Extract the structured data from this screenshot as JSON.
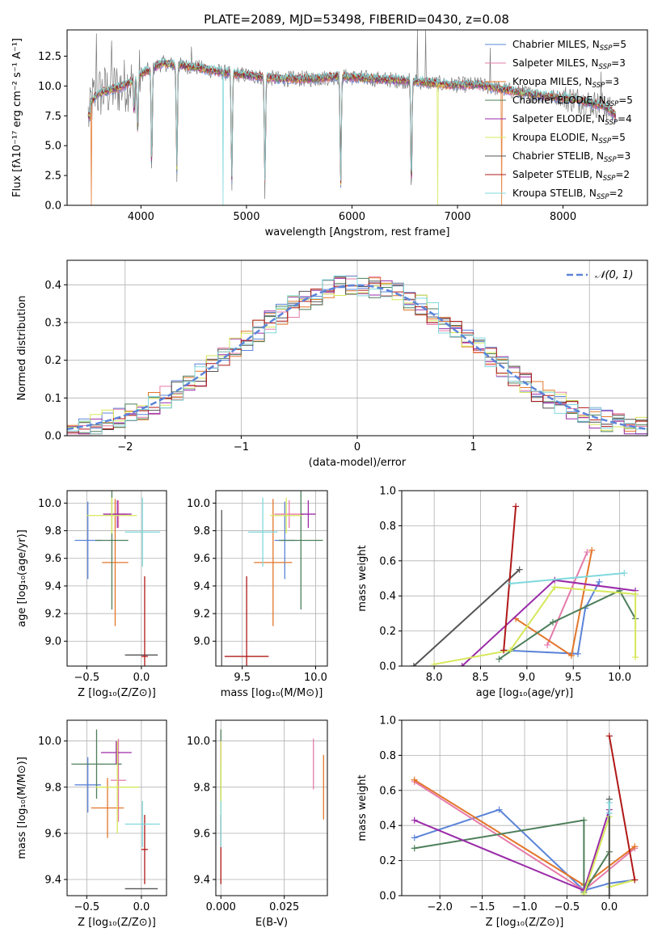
{
  "figure": {
    "title": "PLATE=2089, MJD=53498, FIBERID=0430, z=0.08"
  },
  "colors": {
    "Chabrier MILES": "#5b84d8",
    "Salpeter MILES": "#e57ba9",
    "Kroupa MILES": "#e3762a",
    "Chabrier ELODIE": "#4e7f5b",
    "Salpeter ELODIE": "#9a2ba8",
    "Kroupa ELODIE": "#d6e85a",
    "Chabrier STELIB": "#555555",
    "Salpeter STELIB": "#b01818",
    "Kroupa STELIB": "#80d8dc",
    "gaussian": "#5b84d8",
    "data": "#7a7a7a"
  },
  "chart_data": [
    {
      "id": "spectrum",
      "type": "line",
      "title": "PLATE=2089, MJD=53498, FIBERID=0430, z=0.08",
      "xlabel": "wavelength [Angstrom, rest frame]",
      "ylabel": "Flux [fλ10⁻¹⁷ erg cm⁻² s⁻¹ A⁻¹]",
      "xlim": [
        3300,
        8800
      ],
      "ylim": [
        0,
        14.7
      ],
      "xticks": [
        4000,
        5000,
        6000,
        7000,
        8000
      ],
      "yticks": [
        0.0,
        2.5,
        5.0,
        7.5,
        10.0,
        12.5
      ],
      "grid": false,
      "legend_position": "upper right",
      "legend": [
        {
          "label": "Chabrier MILES, N",
          "sub": "SSP",
          "value": "=5",
          "color": "#5b84d8"
        },
        {
          "label": "Salpeter MILES, N",
          "sub": "SSP",
          "value": "=3",
          "color": "#e57ba9"
        },
        {
          "label": "Kroupa MILES, N",
          "sub": "SSP",
          "value": "=3",
          "color": "#e3762a"
        },
        {
          "label": "Chabrier ELODIE, N",
          "sub": "SSP",
          "value": "=5",
          "color": "#4e7f5b"
        },
        {
          "label": "Salpeter ELODIE, N",
          "sub": "SSP",
          "value": "=4",
          "color": "#9a2ba8"
        },
        {
          "label": "Kroupa ELODIE, N",
          "sub": "SSP",
          "value": "=5",
          "color": "#d6e85a"
        },
        {
          "label": "Chabrier STELIB, N",
          "sub": "SSP",
          "value": "=3",
          "color": "#555555"
        },
        {
          "label": "Salpeter STELIB, N",
          "sub": "SSP",
          "value": "=2",
          "color": "#b01818"
        },
        {
          "label": "Kroupa STELIB, N",
          "sub": "SSP",
          "value": "=2",
          "color": "#80d8dc"
        }
      ],
      "continuum": [
        [
          3520,
          8.6
        ],
        [
          3600,
          9.4
        ],
        [
          3800,
          9.9
        ],
        [
          3900,
          10.3
        ],
        [
          4000,
          11.0
        ],
        [
          4200,
          11.9
        ],
        [
          4500,
          11.6
        ],
        [
          4800,
          11.1
        ],
        [
          5000,
          10.9
        ],
        [
          5300,
          10.6
        ],
        [
          5600,
          10.6
        ],
        [
          5900,
          10.8
        ],
        [
          6200,
          10.6
        ],
        [
          6600,
          10.4
        ],
        [
          6900,
          10.1
        ],
        [
          7200,
          10.1
        ],
        [
          7500,
          9.6
        ],
        [
          7800,
          9.2
        ],
        [
          8100,
          8.9
        ],
        [
          8400,
          8.3
        ],
        [
          8500,
          7.5
        ]
      ],
      "data_range": [
        3500,
        8500
      ],
      "absorption": [
        [
          3934,
          3.0
        ],
        [
          3969,
          4.8
        ],
        [
          4102,
          9.0
        ],
        [
          4340,
          9.6
        ],
        [
          4861,
          9.9
        ],
        [
          5175,
          9.8
        ],
        [
          5893,
          10.1
        ],
        [
          6563,
          9.9
        ]
      ],
      "dropouts": [
        {
          "x": 3530,
          "series": "Kroupa MILES"
        },
        {
          "x": 3905,
          "series": "Kroupa ELODIE"
        },
        {
          "x": 4780,
          "series": "Kroupa STELIB"
        },
        {
          "x": 6810,
          "series": "Kroupa ELODIE"
        },
        {
          "x": 7420,
          "series": "Kroupa MILES"
        }
      ],
      "data_spikes": [
        {
          "x": 3580,
          "value": 14.4
        },
        {
          "x": 3720,
          "value": 13.8
        },
        {
          "x": 4480,
          "value": 13.3
        },
        {
          "x": 6620,
          "value": 14.7
        },
        {
          "x": 6700,
          "value": 14.7
        },
        {
          "x": 7310,
          "value": 13.2
        },
        {
          "x": 8360,
          "value": 11.2
        }
      ]
    },
    {
      "id": "residuals",
      "type": "histogram",
      "xlabel": "(data-model)/error",
      "ylabel": "Normed distribution",
      "xlim": [
        -2.5,
        2.5
      ],
      "ylim": [
        0,
        0.465
      ],
      "xticks": [
        -2,
        -1,
        0,
        1,
        2
      ],
      "yticks": [
        0.0,
        0.1,
        0.2,
        0.3,
        0.4
      ],
      "grid": true,
      "legend_position": "upper right",
      "legend": [
        {
          "label": "𝒩(0, 1)",
          "color": "#5b84d8"
        }
      ],
      "bin_width": 0.1,
      "gaussian": {
        "mean": 0,
        "sigma": 1
      }
    },
    {
      "id": "age-vs-Z",
      "type": "errorbar",
      "xlabel": "Z [log₁₀(Z/Z⊙)]",
      "ylabel": "age  [log₁₀(age/yr)]",
      "xlim": [
        -0.68,
        0.23
      ],
      "ylim": [
        8.82,
        10.09
      ],
      "xticks": [
        -0.5,
        0.0
      ],
      "yticks": [
        9.0,
        9.2,
        9.4,
        9.6,
        9.8,
        10.0
      ],
      "grid": true,
      "points": [
        {
          "series": "Chabrier MILES",
          "x": -0.49,
          "xerr": 0.12,
          "y": 9.73,
          "yerr": 0.28
        },
        {
          "series": "Salpeter MILES",
          "x": -0.21,
          "xerr": 0.08,
          "y": 9.92,
          "yerr": 0.1
        },
        {
          "series": "Kroupa MILES",
          "x": -0.24,
          "xerr": 0.12,
          "y": 9.57,
          "yerr": 0.46
        },
        {
          "series": "Chabrier ELODIE",
          "x": -0.27,
          "xerr": 0.15,
          "y": 9.73,
          "yerr": 0.5
        },
        {
          "series": "Salpeter ELODIE",
          "x": -0.22,
          "xerr": 0.13,
          "y": 9.92,
          "yerr": 0.1
        },
        {
          "series": "Kroupa ELODIE",
          "x": -0.27,
          "xerr": 0.23,
          "y": 9.91,
          "yerr": 0.13
        },
        {
          "series": "Chabrier STELIB",
          "x": 0.0,
          "xerr": 0.15,
          "y": 8.9,
          "yerr": 0.0
        },
        {
          "series": "Salpeter STELIB",
          "x": 0.03,
          "xerr": 0.03,
          "y": 8.89,
          "yerr": 0.58
        },
        {
          "series": "Kroupa STELIB",
          "x": 0.01,
          "xerr": 0.16,
          "y": 9.79,
          "yerr": 0.25
        }
      ]
    },
    {
      "id": "age-vs-mass",
      "type": "errorbar",
      "xlabel": "mass [log₁₀(M/M⊙)]",
      "ylabel": "",
      "xlim": [
        9.32,
        10.08
      ],
      "ylim": [
        8.82,
        10.09
      ],
      "xticks": [
        9.5,
        10.0
      ],
      "yticks": [
        9.0,
        9.2,
        9.4,
        9.6,
        9.8,
        10.0
      ],
      "grid": true,
      "points": [
        {
          "series": "Chabrier MILES",
          "x": 9.79,
          "xerr": 0.07,
          "y": 9.73,
          "yerr": 0.28
        },
        {
          "series": "Salpeter MILES",
          "x": 9.82,
          "xerr": 0.1,
          "y": 9.92,
          "yerr": 0.1
        },
        {
          "series": "Kroupa MILES",
          "x": 9.71,
          "xerr": 0.13,
          "y": 9.57,
          "yerr": 0.46
        },
        {
          "series": "Chabrier ELODIE",
          "x": 9.9,
          "xerr": 0.15,
          "y": 9.73,
          "yerr": 0.5
        },
        {
          "series": "Salpeter ELODIE",
          "x": 9.95,
          "xerr": 0.05,
          "y": 9.92,
          "yerr": 0.1
        },
        {
          "series": "Kroupa ELODIE",
          "x": 9.8,
          "xerr": 0.11,
          "y": 9.91,
          "yerr": 0.13
        },
        {
          "series": "Chabrier STELIB",
          "x": 9.36,
          "xerr": 0.0,
          "y": 8.9,
          "yerr": 1.05
        },
        {
          "series": "Salpeter STELIB",
          "x": 9.53,
          "xerr": 0.15,
          "y": 8.89,
          "yerr": 0.58
        },
        {
          "series": "Kroupa STELIB",
          "x": 9.64,
          "xerr": 0.1,
          "y": 9.79,
          "yerr": 0.25
        }
      ]
    },
    {
      "id": "weight-vs-age",
      "type": "line",
      "xlabel": "age  [log₁₀(age/yr)]",
      "ylabel": "mass weight",
      "xlim": [
        7.65,
        10.3
      ],
      "ylim": [
        0,
        1
      ],
      "xticks": [
        8.0,
        8.5,
        9.0,
        9.5,
        10.0
      ],
      "yticks": [
        0.0,
        0.2,
        0.4,
        0.6,
        0.8,
        1.0
      ],
      "grid": true,
      "series": [
        {
          "name": "Chabrier MILES",
          "points": [
            [
              8.75,
              0.09
            ],
            [
              9.55,
              0.07
            ],
            [
              9.63,
              0.33
            ],
            [
              9.78,
              0.48
            ]
          ]
        },
        {
          "name": "Salpeter MILES",
          "points": [
            [
              9.22,
              0.12
            ],
            [
              9.65,
              0.65
            ]
          ]
        },
        {
          "name": "Kroupa MILES",
          "points": [
            [
              8.88,
              0.27
            ],
            [
              9.48,
              0.06
            ],
            [
              9.7,
              0.66
            ]
          ]
        },
        {
          "name": "Chabrier ELODIE",
          "points": [
            [
              8.7,
              0.04
            ],
            [
              9.28,
              0.25
            ],
            [
              10.0,
              0.43
            ],
            [
              10.17,
              0.27
            ]
          ]
        },
        {
          "name": "Salpeter ELODIE",
          "points": [
            [
              8.3,
              0.0
            ],
            [
              9.3,
              0.49
            ],
            [
              10.17,
              0.43
            ]
          ]
        },
        {
          "name": "Kroupa ELODIE",
          "points": [
            [
              8.0,
              0.01
            ],
            [
              8.82,
              0.09
            ],
            [
              9.3,
              0.45
            ],
            [
              10.17,
              0.41
            ],
            [
              10.17,
              0.05
            ]
          ]
        },
        {
          "name": "Chabrier STELIB",
          "points": [
            [
              7.78,
              0.0
            ],
            [
              8.92,
              0.55
            ]
          ]
        },
        {
          "name": "Salpeter STELIB",
          "points": [
            [
              8.75,
              0.09
            ],
            [
              8.88,
              0.91
            ]
          ]
        },
        {
          "name": "Kroupa STELIB",
          "points": [
            [
              8.82,
              0.47
            ],
            [
              10.05,
              0.53
            ]
          ]
        }
      ]
    },
    {
      "id": "mass-vs-Z",
      "type": "errorbar",
      "xlabel": "Z [log₁₀(Z/Z⊙)]",
      "ylabel": "mass [log₁₀(M/M⊙)]",
      "xlim": [
        -0.68,
        0.23
      ],
      "ylim": [
        9.33,
        10.09
      ],
      "xticks": [
        -0.5,
        0.0
      ],
      "yticks": [
        9.4,
        9.6,
        9.8,
        10.0
      ],
      "grid": true,
      "points": [
        {
          "series": "Chabrier MILES",
          "x": -0.49,
          "xerr": 0.12,
          "y": 9.81,
          "yerr": 0.12
        },
        {
          "series": "Salpeter MILES",
          "x": -0.21,
          "xerr": 0.07,
          "y": 9.83,
          "yerr": 0.18
        },
        {
          "series": "Kroupa MILES",
          "x": -0.31,
          "xerr": 0.15,
          "y": 9.71,
          "yerr": 0.13
        },
        {
          "series": "Chabrier ELODIE",
          "x": -0.41,
          "xerr": 0.23,
          "y": 9.9,
          "yerr": 0.15
        },
        {
          "series": "Salpeter ELODIE",
          "x": -0.23,
          "xerr": 0.14,
          "y": 9.95,
          "yerr": 0.05
        },
        {
          "series": "Kroupa ELODIE",
          "x": -0.22,
          "xerr": 0.2,
          "y": 9.8,
          "yerr": 0.2
        },
        {
          "series": "Chabrier STELIB",
          "x": 0.0,
          "xerr": 0.15,
          "y": 9.36,
          "yerr": 0.0
        },
        {
          "series": "Salpeter STELIB",
          "x": 0.03,
          "xerr": 0.03,
          "y": 9.53,
          "yerr": 0.15
        },
        {
          "series": "Kroupa STELIB",
          "x": 0.01,
          "xerr": 0.16,
          "y": 9.64,
          "yerr": 0.1
        }
      ]
    },
    {
      "id": "mass-vs-ebv",
      "type": "errorbar",
      "xlabel": "E(B-V)",
      "ylabel": "",
      "xlim": [
        -0.002,
        0.042
      ],
      "ylim": [
        9.33,
        10.09
      ],
      "xticks": [
        0.0,
        0.025
      ],
      "yticks": [
        9.4,
        9.6,
        9.8,
        10.0
      ],
      "grid": true,
      "points": [
        {
          "series": "Chabrier MILES",
          "x": 0.0,
          "xerr": 0,
          "y": 9.81,
          "yerr": 0.12
        },
        {
          "series": "Salpeter MILES",
          "x": 0.0365,
          "xerr": 0,
          "y": 9.9,
          "yerr": 0.11
        },
        {
          "series": "Kroupa MILES",
          "x": 0.0405,
          "xerr": 0,
          "y": 9.8,
          "yerr": 0.14
        },
        {
          "series": "Chabrier ELODIE",
          "x": 0.0,
          "xerr": 0,
          "y": 9.9,
          "yerr": 0.15
        },
        {
          "series": "Salpeter ELODIE",
          "x": 0.0,
          "xerr": 0,
          "y": 9.95,
          "yerr": 0.05
        },
        {
          "series": "Kroupa ELODIE",
          "x": 0.0,
          "xerr": 0,
          "y": 9.8,
          "yerr": 0.2
        },
        {
          "series": "Chabrier STELIB",
          "x": 0.0,
          "xerr": 0,
          "y": 9.36,
          "yerr": 0.0
        },
        {
          "series": "Salpeter STELIB",
          "x": 0.0,
          "xerr": 0,
          "y": 9.53,
          "yerr": 0.15
        },
        {
          "series": "Kroupa STELIB",
          "x": 0.0,
          "xerr": 0,
          "y": 9.64,
          "yerr": 0.1
        }
      ]
    },
    {
      "id": "weight-vs-Z",
      "type": "line",
      "xlabel": "Z [log₁₀(Z/Z⊙)]",
      "ylabel": "mass weight",
      "xlim": [
        -2.45,
        0.45
      ],
      "ylim": [
        0,
        1
      ],
      "xticks": [
        -2.0,
        -1.5,
        -1.0,
        -0.5,
        0.0
      ],
      "yticks": [
        0.0,
        0.2,
        0.4,
        0.6,
        0.8,
        1.0
      ],
      "grid": true,
      "series": [
        {
          "name": "Chabrier MILES",
          "points": [
            [
              -2.3,
              0.33
            ],
            [
              -1.3,
              0.49
            ],
            [
              -0.3,
              0.03
            ],
            [
              0.0,
              0.07
            ],
            [
              0.3,
              0.09
            ]
          ]
        },
        {
          "name": "Salpeter MILES",
          "points": [
            [
              -2.3,
              0.65
            ],
            [
              -0.3,
              0.03
            ],
            [
              0.3,
              0.27
            ]
          ]
        },
        {
          "name": "Kroupa MILES",
          "points": [
            [
              -2.3,
              0.66
            ],
            [
              -0.3,
              0.06
            ],
            [
              0.3,
              0.28
            ]
          ]
        },
        {
          "name": "Chabrier ELODIE",
          "points": [
            [
              -2.3,
              0.27
            ],
            [
              -0.3,
              0.43
            ],
            [
              -0.3,
              0.02
            ],
            [
              0.0,
              0.25
            ]
          ]
        },
        {
          "name": "Salpeter ELODIE",
          "points": [
            [
              -2.3,
              0.43
            ],
            [
              -0.3,
              0.03
            ],
            [
              0.0,
              0.49
            ]
          ]
        },
        {
          "name": "Kroupa ELODIE",
          "points": [
            [
              -0.3,
              0.01
            ],
            [
              -0.0,
              0.45
            ],
            [
              0.0,
              0.05
            ],
            [
              0.3,
              0.09
            ]
          ]
        },
        {
          "name": "Chabrier STELIB",
          "points": [
            [
              0.0,
              0.0
            ],
            [
              0.0,
              0.55
            ]
          ]
        },
        {
          "name": "Salpeter STELIB",
          "points": [
            [
              0.0,
              0.91
            ],
            [
              0.3,
              0.09
            ]
          ]
        },
        {
          "name": "Kroupa STELIB",
          "points": [
            [
              0.0,
              0.47
            ],
            [
              0.0,
              0.53
            ]
          ]
        }
      ]
    }
  ]
}
